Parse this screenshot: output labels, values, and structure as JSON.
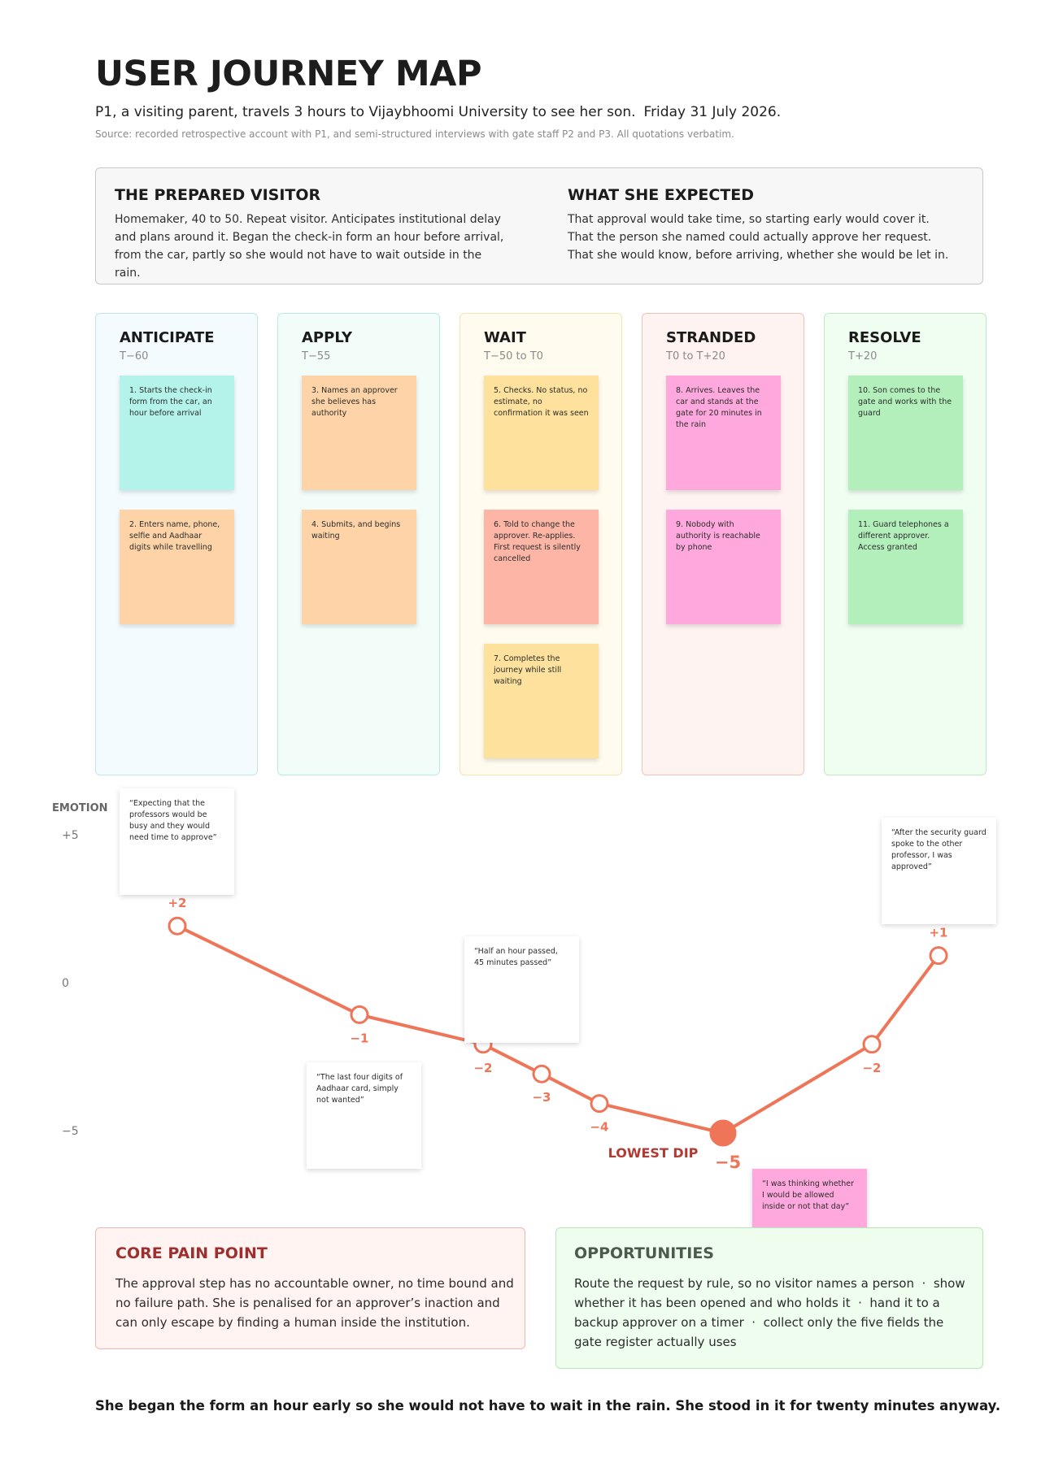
{
  "header": {
    "title": "USER JOURNEY MAP",
    "subtitle_main": "P1, a visiting parent, travels 3 hours to Vijaybhoomi University to see her son.",
    "subtitle_date": "Friday 31 July 2026.",
    "source": "Source: recorded retrospective account with P1, and semi-structured interviews with gate staff P2 and P3. All quotations verbatim."
  },
  "persona": {
    "left": {
      "title": "THE PREPARED VISITOR",
      "text": "Homemaker, 40 to 50. Repeat visitor. Anticipates institutional delay and plans around it. Began the check-in form an hour before arrival, from the car, partly so she would not have to wait outside in the rain."
    },
    "right": {
      "title": "WHAT SHE EXPECTED",
      "text": "That approval would take time, so starting early would cover it. That the person she named could actually approve her request. That she would know, before arriving, whether she would be let in."
    }
  },
  "stages": [
    {
      "title": "ANTICIPATE",
      "time": "T−60",
      "notes": [
        {
          "text": "1. Starts the check-in form from the car, an hour before arrival",
          "color": "#b3f3ea"
        },
        {
          "text": "2. Enters name, phone, selfie and Aadhaar digits while travelling",
          "color": "#fdd3a7"
        }
      ]
    },
    {
      "title": "APPLY",
      "time": "T−55",
      "notes": [
        {
          "text": "3. Names an approver she believes has authority",
          "color": "#fdd3a7"
        },
        {
          "text": "4. Submits, and begins waiting",
          "color": "#fdd3a7"
        }
      ]
    },
    {
      "title": "WAIT",
      "time": "T−50 to T0",
      "notes": [
        {
          "text": "5. Checks. No status, no estimate, no confirmation it was seen",
          "color": "#fde19c"
        },
        {
          "text": "6. Told to change the approver. Re-applies. First request is silently cancelled",
          "color": "#fdb6a6"
        },
        {
          "text": "7. Completes the journey while still waiting",
          "color": "#fde19c"
        }
      ]
    },
    {
      "title": "STRANDED",
      "time": "T0 to T+20",
      "notes": [
        {
          "text": "8. Arrives. Leaves the car and stands at the gate for 20 minutes in the rain",
          "color": "#ffa8dd"
        },
        {
          "text": "9. Nobody with authority is reachable by phone",
          "color": "#ffa8dd"
        }
      ]
    },
    {
      "title": "RESOLVE",
      "time": "T+20",
      "notes": [
        {
          "text": "10. Son comes to the gate and works with the guard",
          "color": "#b3efbb"
        },
        {
          "text": "11. Guard telephones a different approver. Access granted",
          "color": "#b3efbb"
        }
      ]
    }
  ],
  "emotion_axis": {
    "title": "EMOTION",
    "ticks": [
      "+5",
      "0",
      "−5"
    ],
    "range": [
      -5,
      5
    ]
  },
  "emotion_points": [
    {
      "label": "+2",
      "value": 2
    },
    {
      "label": "−1",
      "value": -1
    },
    {
      "label": "−2",
      "value": -2
    },
    {
      "label": "−3",
      "value": -3
    },
    {
      "label": "−4",
      "value": -4
    },
    {
      "label": "−5",
      "value": -5,
      "lowest": true
    },
    {
      "label": "−2",
      "value": -2
    },
    {
      "label": "+1",
      "value": 1
    }
  ],
  "lowest_label": "LOWEST DIP",
  "line_color": "#ef7558",
  "quotes": [
    {
      "text": "“Expecting that the professors would be busy and they would need time to approve”"
    },
    {
      "text": "“The last four digits of Aadhaar card, simply not wanted”"
    },
    {
      "text": "“Half an hour passed, 45 minutes passed”"
    },
    {
      "text": "“I was thinking whether I would be allowed inside or not that day”"
    },
    {
      "text": "“After the security guard spoke to the other professor, I was approved”"
    }
  ],
  "pain_point": {
    "title": "CORE PAIN POINT",
    "text": "The approval step has no accountable owner, no time bound and no failure path. She is penalised for an approver’s inaction and can only escape by finding a human inside the institution."
  },
  "opportunities": {
    "title": "OPPORTUNITIES",
    "text": "Route the request by rule, so no visitor names a person  ·  show whether it has been opened and who holds it  ·  hand it to a backup approver on a timer  ·  collect only the five fields the gate register actually uses"
  },
  "closing": "She began the form an hour early so she would not have to wait in the rain. She stood in it for twenty minutes anyway."
}
